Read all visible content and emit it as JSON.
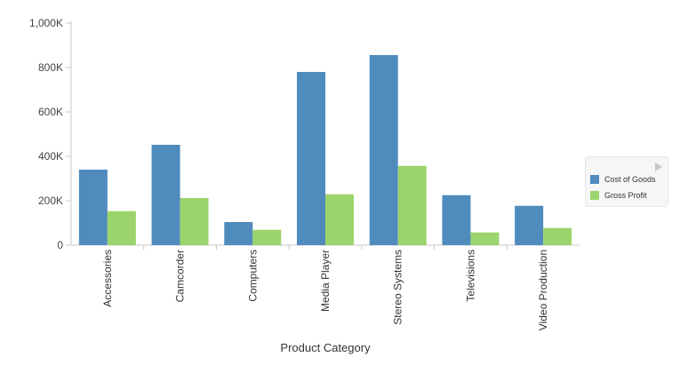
{
  "chart_data": {
    "type": "bar",
    "title": "",
    "xlabel": "Product Category",
    "ylabel": "",
    "categories": [
      "Accessories",
      "Camcorder",
      "Computers",
      "Media Player",
      "Stereo Systems",
      "Televisions",
      "Video Production"
    ],
    "series": [
      {
        "name": "Cost of Goods",
        "color": "#4f8bbd",
        "values": [
          340000,
          452000,
          104000,
          780000,
          856000,
          225000,
          177000
        ]
      },
      {
        "name": "Gross Profit",
        "color": "#9cd46c",
        "values": [
          153000,
          212000,
          69000,
          229000,
          357000,
          57000,
          77000
        ]
      }
    ],
    "ylim": [
      0,
      1000000
    ],
    "yticks": [
      {
        "value": 0,
        "label": "0"
      },
      {
        "value": 200000,
        "label": "200K"
      },
      {
        "value": 400000,
        "label": "400K"
      },
      {
        "value": 600000,
        "label": "600K"
      },
      {
        "value": 800000,
        "label": "800K"
      },
      {
        "value": 1000000,
        "label": "1,000K"
      }
    ],
    "grid": false,
    "legend_position": "right"
  }
}
